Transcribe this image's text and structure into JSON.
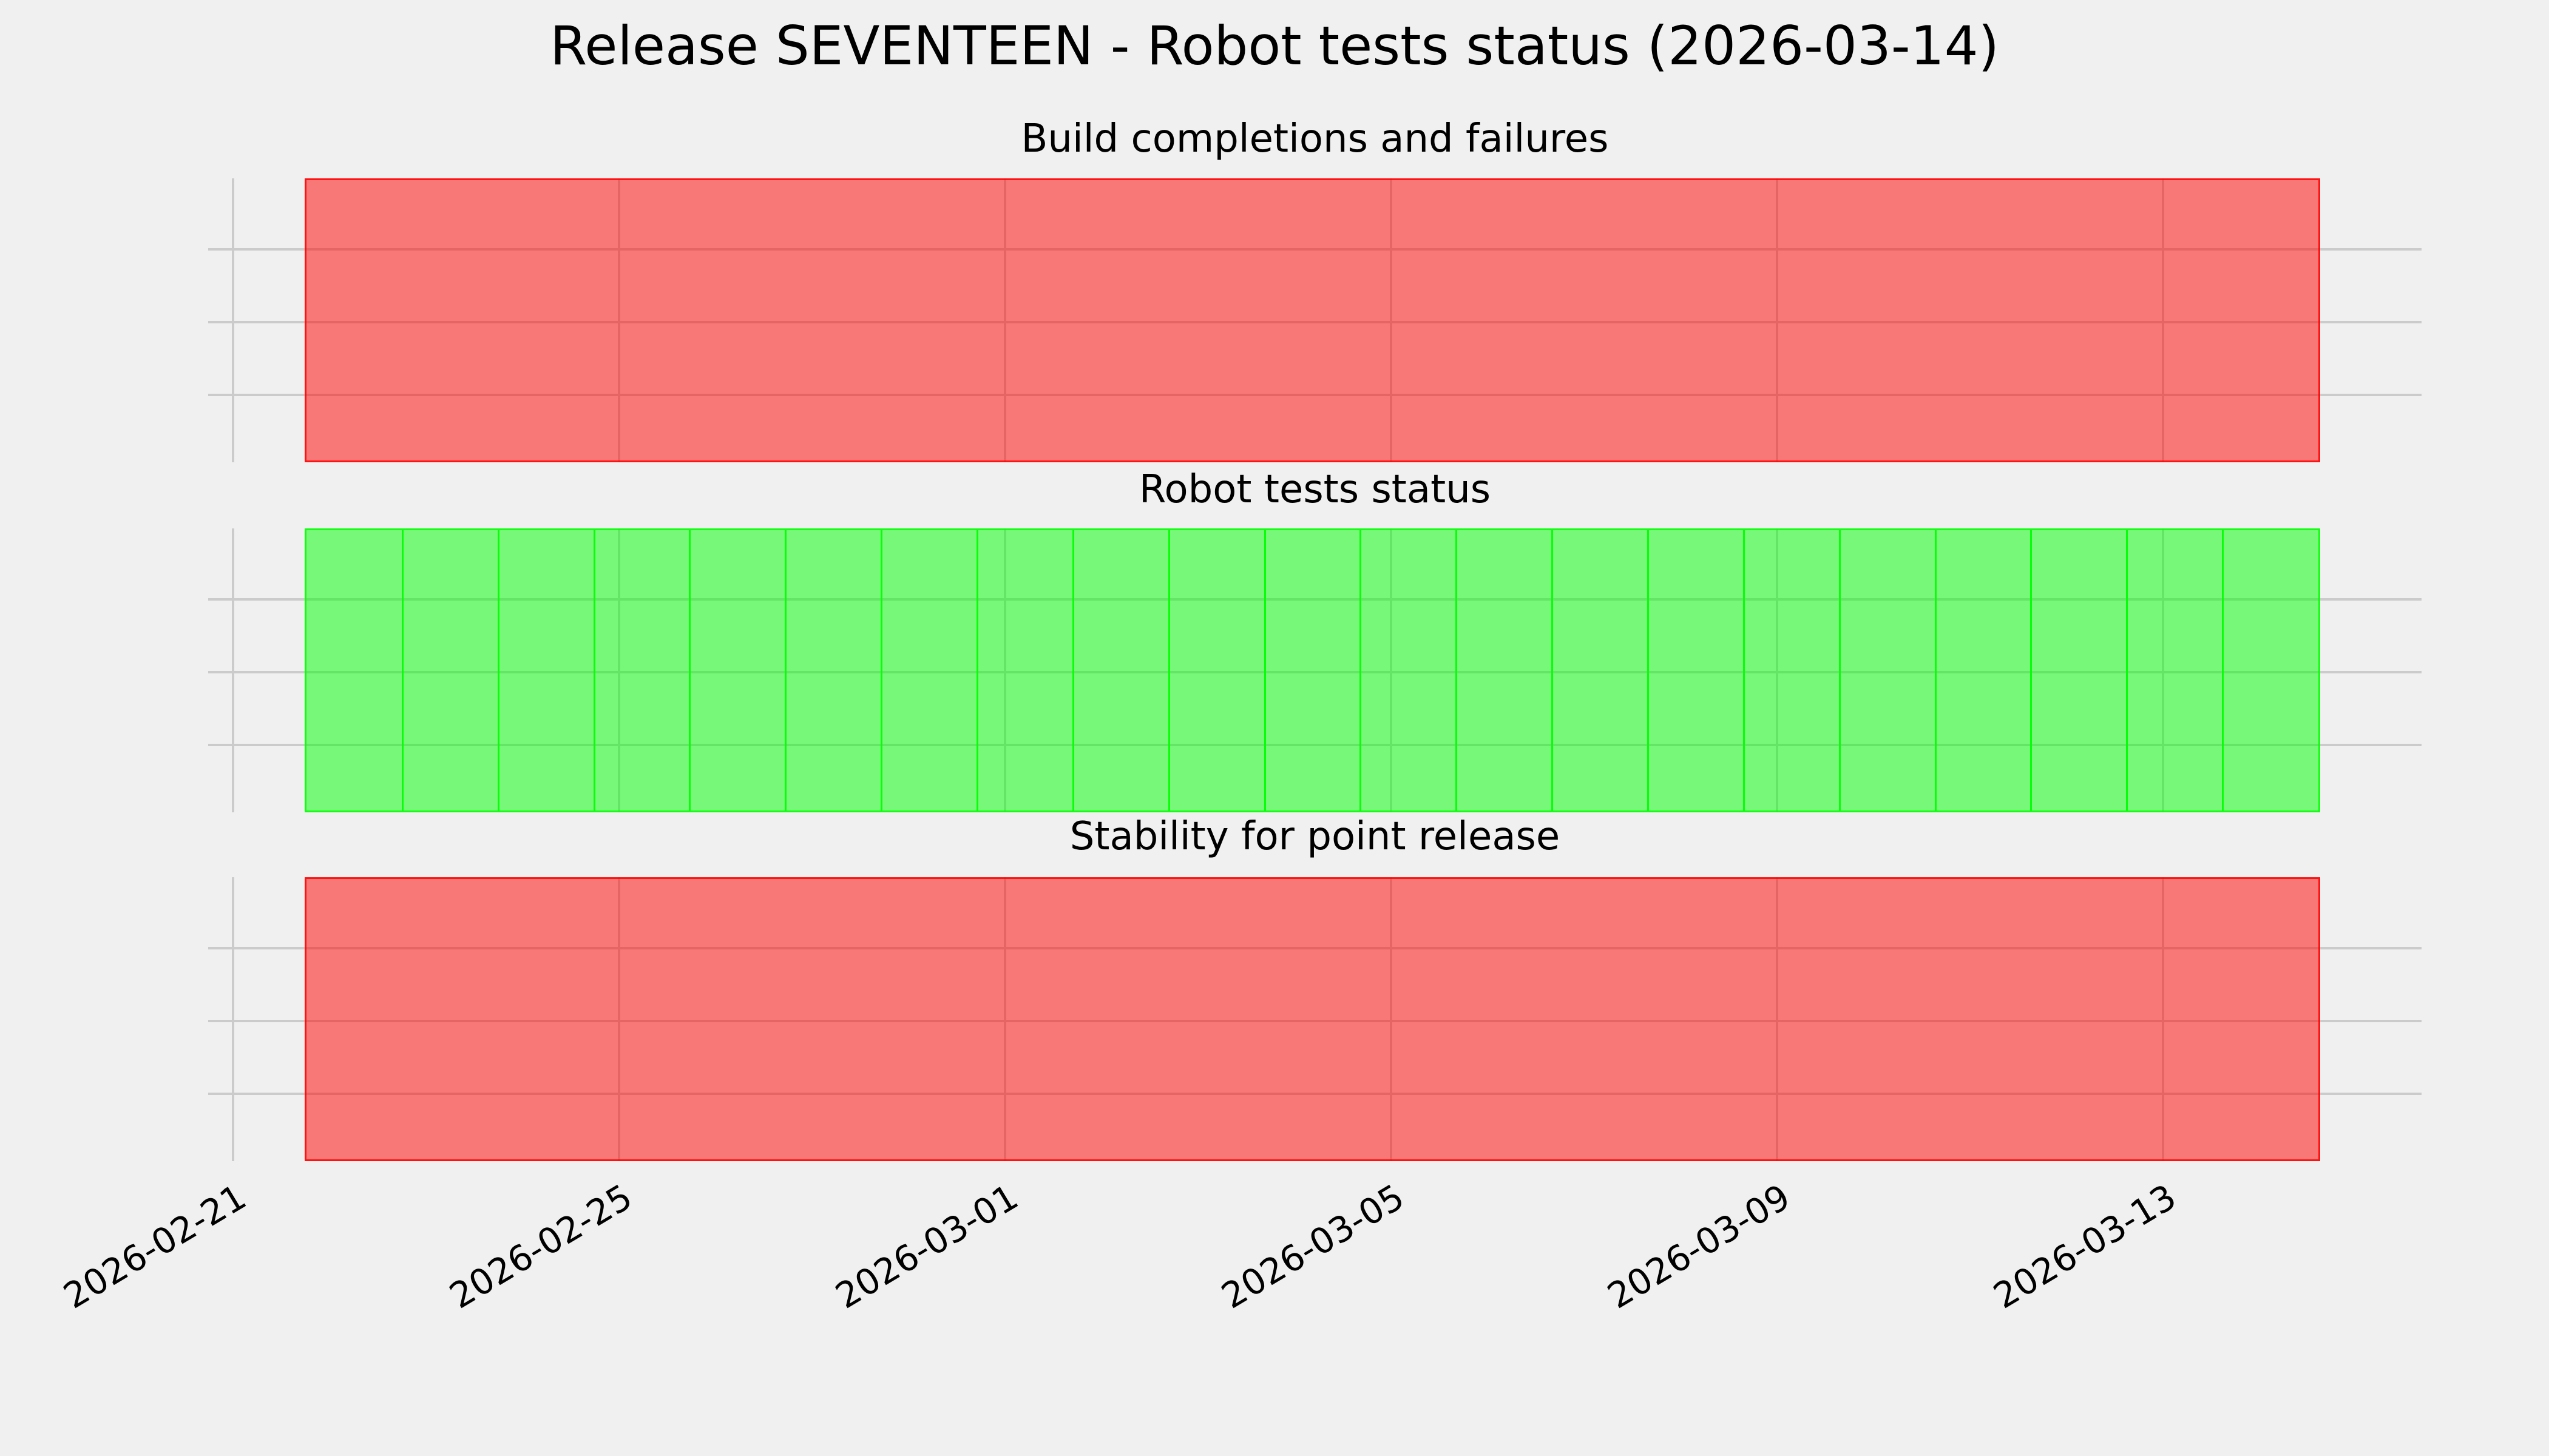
{
  "figure": {
    "title": "Release SEVENTEEN - Robot tests status (2026-03-14)",
    "background_color": "#f0f0f0",
    "grid_color": "#cbcbcb",
    "text_color": "#000000",
    "pass_color": "#00ff00",
    "fail_color": "#ff0000",
    "band_fill_alpha": 0.5
  },
  "x_axis": {
    "tick_labels": [
      "2026-02-21",
      "2026-02-25",
      "2026-03-01",
      "2026-03-05",
      "2026-03-09",
      "2026-03-13"
    ],
    "tick_label_rotation_deg": 31
  },
  "chart_data": [
    {
      "type": "bar",
      "title": "Build completions and failures",
      "status_overall": "fail",
      "bar_color": "#ff0000",
      "rendered_fill_color": "#f57676",
      "show_bar_edges": false,
      "bar_width_days": 1,
      "ylim": [
        0,
        1
      ],
      "grid": true,
      "legend": false,
      "x_tick_labels": [
        "2026-02-21",
        "2026-02-25",
        "2026-03-01",
        "2026-03-05",
        "2026-03-09",
        "2026-03-13"
      ],
      "categories": [
        "2026-02-22",
        "2026-02-23",
        "2026-02-24",
        "2026-02-25",
        "2026-02-26",
        "2026-02-27",
        "2026-02-28",
        "2026-03-01",
        "2026-03-02",
        "2026-03-03",
        "2026-03-04",
        "2026-03-05",
        "2026-03-06",
        "2026-03-07",
        "2026-03-08",
        "2026-03-09",
        "2026-03-10",
        "2026-03-11",
        "2026-03-12",
        "2026-03-13",
        "2026-03-14"
      ],
      "values": [
        1,
        1,
        1,
        1,
        1,
        1,
        1,
        1,
        1,
        1,
        1,
        1,
        1,
        1,
        1,
        1,
        1,
        1,
        1,
        1,
        1
      ],
      "statuses": [
        "fail",
        "fail",
        "fail",
        "fail",
        "fail",
        "fail",
        "fail",
        "fail",
        "fail",
        "fail",
        "fail",
        "fail",
        "fail",
        "fail",
        "fail",
        "fail",
        "fail",
        "fail",
        "fail",
        "fail",
        "fail"
      ]
    },
    {
      "type": "bar",
      "title": "Robot tests status",
      "status_overall": "pass",
      "bar_color": "#00ff00",
      "rendered_fill_color": "#74f57a",
      "show_bar_edges": true,
      "bar_width_days": 1,
      "ylim": [
        0,
        1
      ],
      "grid": true,
      "legend": false,
      "x_tick_labels": [
        "2026-02-21",
        "2026-02-25",
        "2026-03-01",
        "2026-03-05",
        "2026-03-09",
        "2026-03-13"
      ],
      "categories": [
        "2026-02-22",
        "2026-02-23",
        "2026-02-24",
        "2026-02-25",
        "2026-02-26",
        "2026-02-27",
        "2026-02-28",
        "2026-03-01",
        "2026-03-02",
        "2026-03-03",
        "2026-03-04",
        "2026-03-05",
        "2026-03-06",
        "2026-03-07",
        "2026-03-08",
        "2026-03-09",
        "2026-03-10",
        "2026-03-11",
        "2026-03-12",
        "2026-03-13",
        "2026-03-14"
      ],
      "values": [
        1,
        1,
        1,
        1,
        1,
        1,
        1,
        1,
        1,
        1,
        1,
        1,
        1,
        1,
        1,
        1,
        1,
        1,
        1,
        1,
        1
      ],
      "statuses": [
        "pass",
        "pass",
        "pass",
        "pass",
        "pass",
        "pass",
        "pass",
        "pass",
        "pass",
        "pass",
        "pass",
        "pass",
        "pass",
        "pass",
        "pass",
        "pass",
        "pass",
        "pass",
        "pass",
        "pass",
        "pass"
      ]
    },
    {
      "type": "bar",
      "title": "Stability for point release",
      "status_overall": "fail",
      "bar_color": "#ff0000",
      "rendered_fill_color": "#f57676",
      "show_bar_edges": false,
      "bar_width_days": 1,
      "ylim": [
        0,
        1
      ],
      "grid": true,
      "legend": false,
      "x_tick_labels": [
        "2026-02-21",
        "2026-02-25",
        "2026-03-01",
        "2026-03-05",
        "2026-03-09",
        "2026-03-13"
      ],
      "categories": [
        "2026-02-22",
        "2026-02-23",
        "2026-02-24",
        "2026-02-25",
        "2026-02-26",
        "2026-02-27",
        "2026-02-28",
        "2026-03-01",
        "2026-03-02",
        "2026-03-03",
        "2026-03-04",
        "2026-03-05",
        "2026-03-06",
        "2026-03-07",
        "2026-03-08",
        "2026-03-09",
        "2026-03-10",
        "2026-03-11",
        "2026-03-12",
        "2026-03-13",
        "2026-03-14"
      ],
      "values": [
        1,
        1,
        1,
        1,
        1,
        1,
        1,
        1,
        1,
        1,
        1,
        1,
        1,
        1,
        1,
        1,
        1,
        1,
        1,
        1,
        1
      ],
      "statuses": [
        "fail",
        "fail",
        "fail",
        "fail",
        "fail",
        "fail",
        "fail",
        "fail",
        "fail",
        "fail",
        "fail",
        "fail",
        "fail",
        "fail",
        "fail",
        "fail",
        "fail",
        "fail",
        "fail",
        "fail",
        "fail"
      ]
    }
  ]
}
